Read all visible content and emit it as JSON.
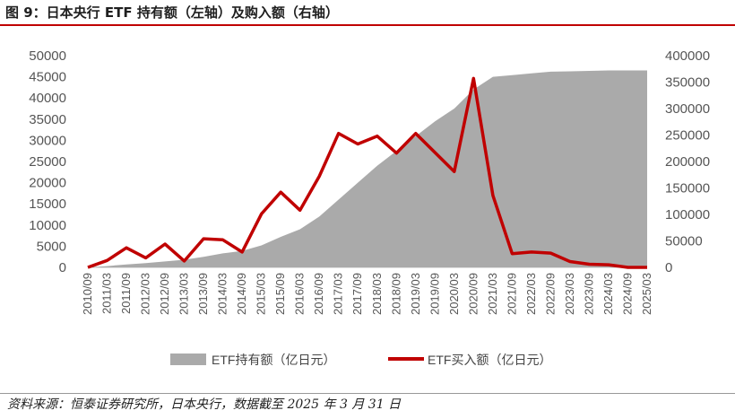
{
  "title": "图 9：日本央行 ETF 持有额（左轴）及购入额（右轴）",
  "source": "资料来源：恒泰证券研究所，日本央行，数据截至 2025 年 3 月 31 日",
  "colors": {
    "area": "#aaaaaa",
    "line": "#c00000",
    "accent": "#c00000"
  },
  "chart_data": {
    "type": "area+line",
    "categories": [
      "2010/09",
      "2011/03",
      "2011/09",
      "2012/03",
      "2012/09",
      "2013/03",
      "2013/09",
      "2014/03",
      "2014/09",
      "2015/03",
      "2015/09",
      "2016/03",
      "2016/09",
      "2017/03",
      "2017/09",
      "2018/03",
      "2018/09",
      "2019/03",
      "2019/09",
      "2020/03",
      "2020/09",
      "2021/03",
      "2021/09",
      "2022/03",
      "2022/09",
      "2023/03",
      "2023/09",
      "2024/03",
      "2024/09",
      "2025/03"
    ],
    "series": [
      {
        "name": "ETF持有额（亿日元）",
        "type": "area",
        "axis": "left",
        "values": [
          0,
          300,
          700,
          1000,
          1400,
          1800,
          2500,
          3300,
          3900,
          5200,
          7200,
          9000,
          12000,
          16000,
          20000,
          24000,
          27500,
          31000,
          34500,
          37500,
          42000,
          45000,
          45400,
          45800,
          46200,
          46300,
          46400,
          46500,
          46500,
          46500
        ]
      },
      {
        "name": "ETF买入额（亿日元）",
        "type": "line",
        "axis": "right",
        "values": [
          0,
          13000,
          37000,
          18000,
          44000,
          12000,
          54000,
          52000,
          29000,
          101000,
          142000,
          108000,
          172000,
          253000,
          233000,
          248000,
          216000,
          253000,
          217000,
          181000,
          357000,
          136000,
          26000,
          29000,
          27000,
          11000,
          6000,
          5000,
          0,
          0
        ]
      }
    ],
    "y_left": {
      "min": 0,
      "max": 50000,
      "ticks": [
        0,
        5000,
        10000,
        15000,
        20000,
        25000,
        30000,
        35000,
        40000,
        45000,
        50000
      ]
    },
    "y_right": {
      "min": 0,
      "max": 400000,
      "ticks": [
        0,
        50000,
        100000,
        150000,
        200000,
        250000,
        300000,
        350000,
        400000
      ]
    },
    "legend_position": "bottom"
  }
}
